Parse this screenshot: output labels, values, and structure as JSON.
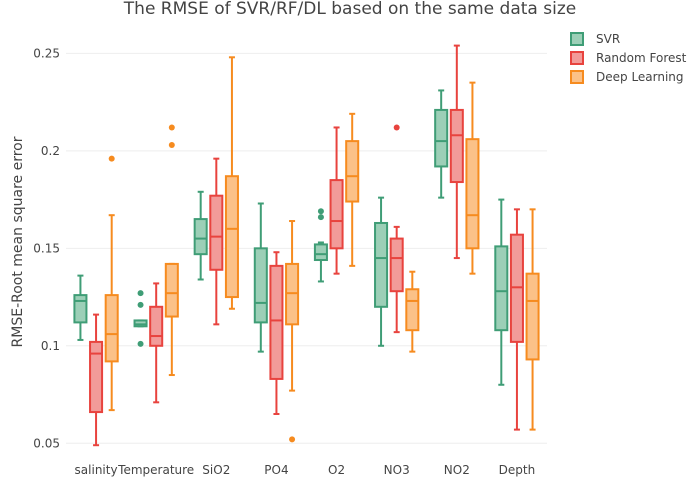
{
  "chart_data": {
    "type": "box",
    "title": "The RMSE of SVR/RF/DL based on the same data size",
    "xlabel": "",
    "ylabel": "RMSE-Root mean square error",
    "categories": [
      "salinity",
      "Temperature",
      "SiO2",
      "PO4",
      "O2",
      "NO3",
      "NO2",
      "Depth"
    ],
    "ylim": [
      0.045,
      0.262
    ],
    "yticks": [
      0.05,
      0.1,
      0.15,
      0.2,
      0.25
    ],
    "ytick_labels": [
      "0.05",
      "0.1",
      "0.15",
      "0.2",
      "0.25"
    ],
    "grid": true,
    "legend_position": "top-right",
    "series": [
      {
        "name": "SVR",
        "color": "#3f9d76",
        "fill": "#9ccfb7",
        "boxes": [
          {
            "min": 0.103,
            "q1": 0.112,
            "median": 0.123,
            "q3": 0.126,
            "max": 0.136,
            "outliers": []
          },
          {
            "min": 0.11,
            "q1": 0.11,
            "median": 0.111,
            "q3": 0.113,
            "max": 0.113,
            "outliers": [
              0.127,
              0.121,
              0.101
            ]
          },
          {
            "min": 0.134,
            "q1": 0.147,
            "median": 0.155,
            "q3": 0.165,
            "max": 0.179,
            "outliers": []
          },
          {
            "min": 0.097,
            "q1": 0.112,
            "median": 0.122,
            "q3": 0.15,
            "max": 0.173,
            "outliers": []
          },
          {
            "min": 0.133,
            "q1": 0.144,
            "median": 0.147,
            "q3": 0.152,
            "max": 0.153,
            "outliers": [
              0.169,
              0.166
            ]
          },
          {
            "min": 0.1,
            "q1": 0.12,
            "median": 0.145,
            "q3": 0.163,
            "max": 0.176,
            "outliers": []
          },
          {
            "min": 0.176,
            "q1": 0.192,
            "median": 0.205,
            "q3": 0.221,
            "max": 0.231,
            "outliers": []
          },
          {
            "min": 0.08,
            "q1": 0.108,
            "median": 0.128,
            "q3": 0.151,
            "max": 0.175,
            "outliers": []
          }
        ]
      },
      {
        "name": "Random Forest",
        "color": "#e8433e",
        "fill": "#f29b99",
        "boxes": [
          {
            "min": 0.049,
            "q1": 0.066,
            "median": 0.096,
            "q3": 0.102,
            "max": 0.116,
            "outliers": []
          },
          {
            "min": 0.071,
            "q1": 0.1,
            "median": 0.105,
            "q3": 0.12,
            "max": 0.132,
            "outliers": []
          },
          {
            "min": 0.111,
            "q1": 0.139,
            "median": 0.156,
            "q3": 0.177,
            "max": 0.196,
            "outliers": []
          },
          {
            "min": 0.065,
            "q1": 0.083,
            "median": 0.113,
            "q3": 0.141,
            "max": 0.148,
            "outliers": []
          },
          {
            "min": 0.137,
            "q1": 0.15,
            "median": 0.164,
            "q3": 0.185,
            "max": 0.212,
            "outliers": []
          },
          {
            "min": 0.107,
            "q1": 0.128,
            "median": 0.145,
            "q3": 0.155,
            "max": 0.161,
            "outliers": [
              0.212
            ]
          },
          {
            "min": 0.145,
            "q1": 0.184,
            "median": 0.208,
            "q3": 0.221,
            "max": 0.254,
            "outliers": []
          },
          {
            "min": 0.057,
            "q1": 0.102,
            "median": 0.13,
            "q3": 0.157,
            "max": 0.17,
            "outliers": []
          }
        ]
      },
      {
        "name": "Deep Learning",
        "color": "#f68b1f",
        "fill": "#fbc188",
        "boxes": [
          {
            "min": 0.067,
            "q1": 0.092,
            "median": 0.106,
            "q3": 0.126,
            "max": 0.167,
            "outliers": [
              0.196
            ]
          },
          {
            "min": 0.085,
            "q1": 0.115,
            "median": 0.127,
            "q3": 0.142,
            "max": 0.142,
            "outliers": [
              0.212,
              0.203
            ]
          },
          {
            "min": 0.119,
            "q1": 0.125,
            "median": 0.16,
            "q3": 0.187,
            "max": 0.248,
            "outliers": []
          },
          {
            "min": 0.077,
            "q1": 0.111,
            "median": 0.127,
            "q3": 0.142,
            "max": 0.164,
            "outliers": [
              0.052
            ]
          },
          {
            "min": 0.141,
            "q1": 0.174,
            "median": 0.187,
            "q3": 0.205,
            "max": 0.219,
            "outliers": []
          },
          {
            "min": 0.097,
            "q1": 0.108,
            "median": 0.123,
            "q3": 0.129,
            "max": 0.138,
            "outliers": []
          },
          {
            "min": 0.137,
            "q1": 0.15,
            "median": 0.167,
            "q3": 0.206,
            "max": 0.235,
            "outliers": []
          },
          {
            "min": 0.057,
            "q1": 0.093,
            "median": 0.123,
            "q3": 0.137,
            "max": 0.17,
            "outliers": []
          }
        ]
      }
    ]
  }
}
